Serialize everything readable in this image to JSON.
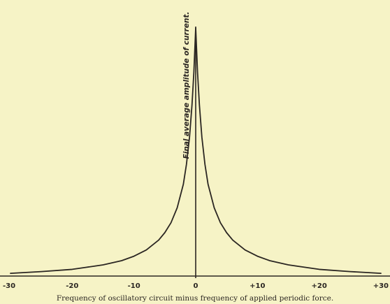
{
  "chart_data": {
    "type": "line",
    "title": "",
    "xlabel": "Frequency of oscillatory circuit minus frequency of applied periodic force.",
    "ylabel": "Final average amplitude of current.",
    "xlim": [
      -30,
      30
    ],
    "ylim": [
      0,
      10
    ],
    "x_ticks": [
      -30,
      -20,
      -10,
      0,
      10,
      20,
      30
    ],
    "x_tick_labels": [
      "-30",
      "-20",
      "-10",
      "0",
      "+10",
      "+20",
      "+30"
    ],
    "grid": false,
    "legend": "none",
    "colors": {
      "background": "#f6f3c6",
      "ink": "#2b2622"
    },
    "series": [
      {
        "x": [
          -30,
          -25,
          -20,
          -15,
          -12,
          -10,
          -8,
          -6,
          -5,
          -4,
          -3,
          -2,
          -1.5,
          -1,
          -0.6,
          -0.3,
          0,
          0.3,
          0.6,
          1,
          1.5,
          2,
          3,
          4,
          5,
          6,
          8,
          10,
          12,
          15,
          20,
          25,
          30
        ],
        "y": [
          0.11,
          0.18,
          0.27,
          0.45,
          0.62,
          0.8,
          1.05,
          1.45,
          1.75,
          2.15,
          2.75,
          3.7,
          4.5,
          5.6,
          6.9,
          8.2,
          10,
          8.2,
          6.9,
          5.6,
          4.5,
          3.7,
          2.75,
          2.15,
          1.75,
          1.45,
          1.05,
          0.8,
          0.62,
          0.45,
          0.27,
          0.18,
          0.11
        ]
      }
    ]
  }
}
